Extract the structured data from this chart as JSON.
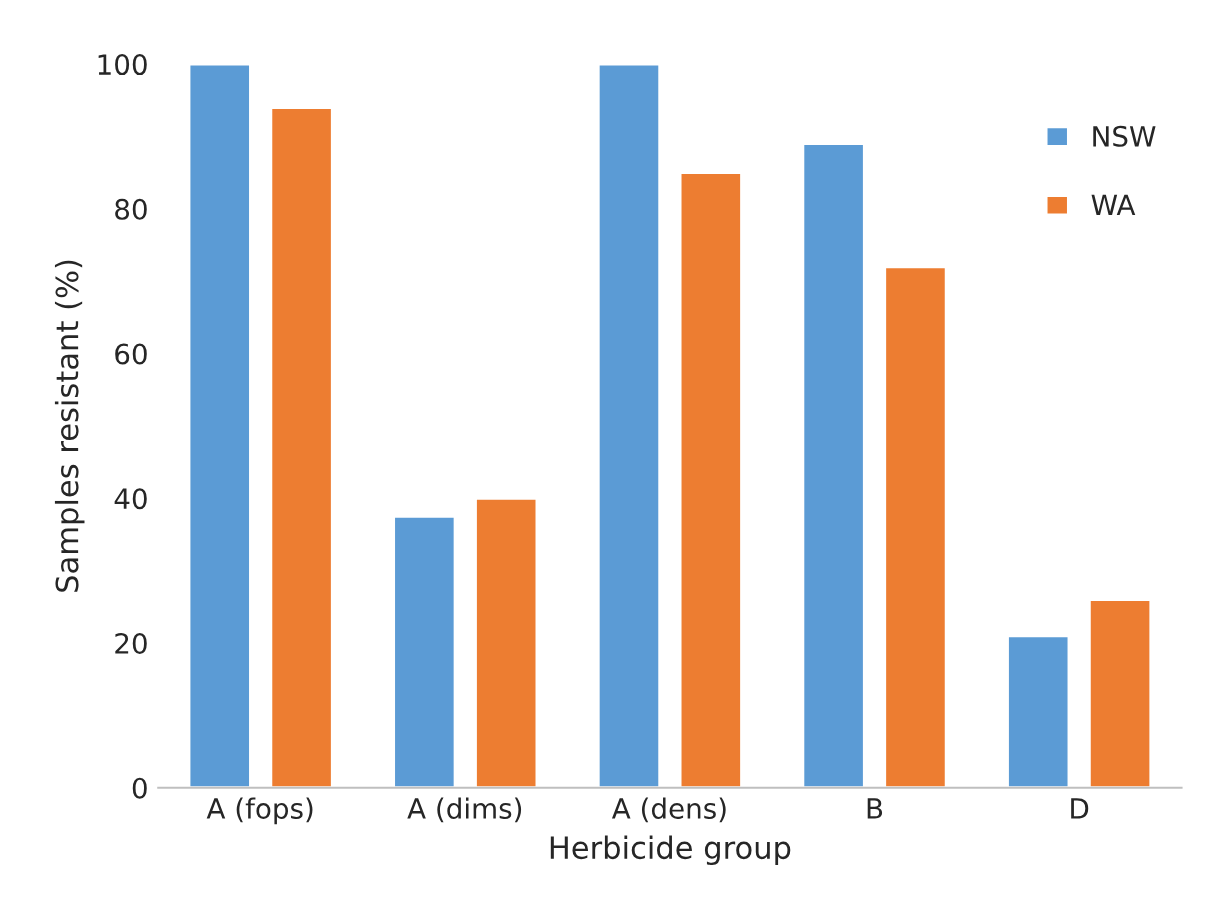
{
  "chart_data": {
    "type": "bar",
    "xlabel": "Herbicide group",
    "ylabel": "Samples resistant (%)",
    "categories": [
      "A (fops)",
      "A (dims)",
      "A (dens)",
      "B",
      "D"
    ],
    "series": [
      {
        "name": "NSW",
        "color": "#5b9bd5",
        "values": [
          100,
          37.5,
          100,
          89,
          21
        ]
      },
      {
        "name": "WA",
        "color": "#ed7d31",
        "values": [
          94,
          40,
          85,
          72,
          26
        ]
      }
    ],
    "ylim": [
      0,
      100
    ],
    "yticks": [
      0,
      20,
      40,
      60,
      80,
      100
    ],
    "grid": false,
    "legend": "top right"
  }
}
